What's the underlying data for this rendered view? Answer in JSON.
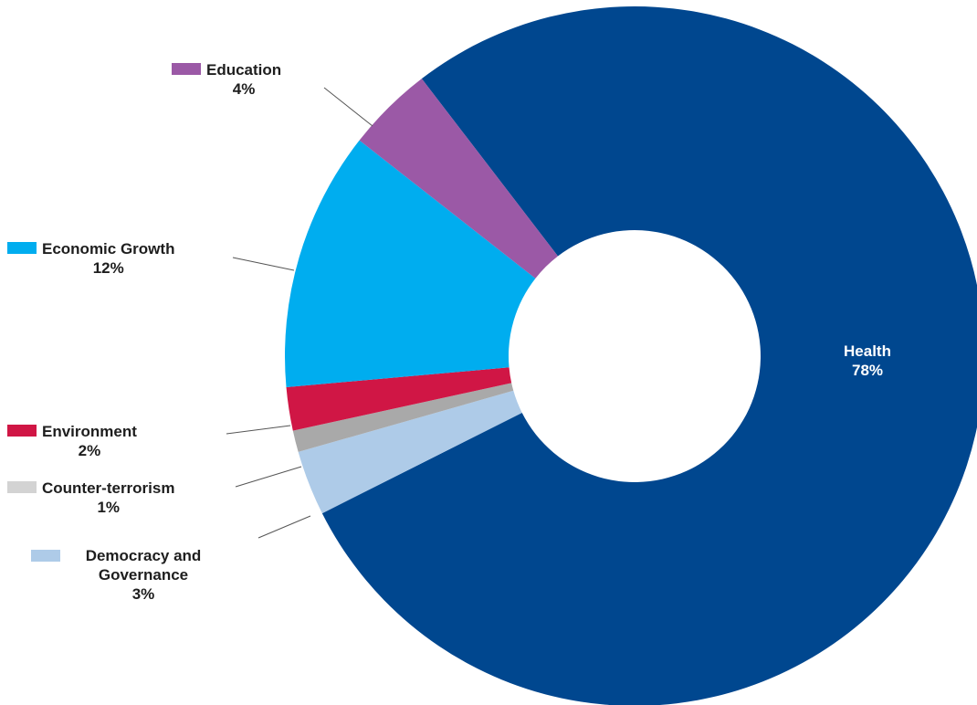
{
  "chart_data": {
    "type": "pie",
    "title": "",
    "donut": true,
    "legend": "labels-with-leader-lines",
    "slices": [
      {
        "name": "Health",
        "value": 78,
        "label": "78%",
        "color": "#00478f"
      },
      {
        "name": "Democracy and Governance",
        "value": 3,
        "label": "3%",
        "color": "#aecbe8"
      },
      {
        "name": "Counter-terrorism",
        "value": 1,
        "label": "1%",
        "color": "#a9a9a9",
        "swatch_color": "#d3d3d3"
      },
      {
        "name": "Environment",
        "value": 2,
        "label": "2%",
        "color": "#d01645"
      },
      {
        "name": "Economic Growth",
        "value": 12,
        "label": "12%",
        "color": "#00adef"
      },
      {
        "name": "Education",
        "value": 4,
        "label": "4%",
        "color": "#9b59a6"
      }
    ]
  }
}
